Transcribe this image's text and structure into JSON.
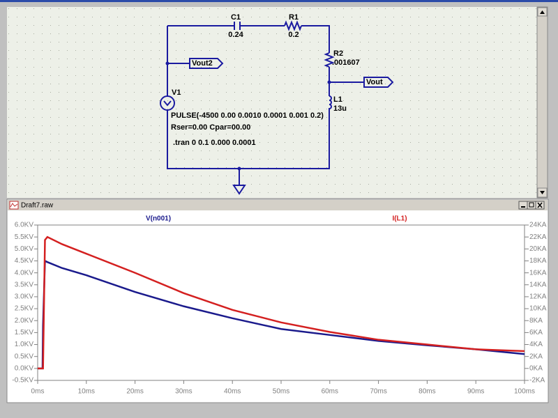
{
  "schematic": {
    "components": [
      {
        "name": "C1",
        "value": "0.24"
      },
      {
        "name": "R1",
        "value": "0.2"
      },
      {
        "name": "R2",
        "value": ".001607"
      },
      {
        "name": "L1",
        "value": "13u"
      },
      {
        "name": "V1"
      }
    ],
    "flags": [
      "Vout2",
      "Vout"
    ],
    "directives": [
      "PULSE(-4500 0.00 0.0010 0.0001 0.001 0.2)",
      "Rser=0.00 Cpar=00.00",
      ".tran 0 0.1 0.000 0.0001"
    ]
  },
  "plot_window": {
    "title": "Draft7.raw"
  },
  "chart_data": {
    "type": "line",
    "x": [
      0,
      1,
      1.1,
      1.5,
      2,
      5,
      10,
      20,
      30,
      40,
      50,
      60,
      70,
      80,
      90,
      100
    ],
    "series": [
      {
        "name": "V(n001)",
        "color": "#1a1a8c",
        "values": [
          0,
          0,
          1.8,
          4.5,
          4.45,
          4.2,
          3.9,
          3.2,
          2.6,
          2.1,
          1.65,
          1.4,
          1.15,
          0.97,
          0.8,
          0.6
        ]
      },
      {
        "name": "I(L1)",
        "color": "#d42020",
        "axis": "y2",
        "values": [
          0,
          0,
          0,
          21.5,
          22,
          20.8,
          19.2,
          16,
          12.6,
          9.8,
          7.7,
          6.1,
          4.8,
          4.0,
          3.2,
          2.9
        ]
      }
    ],
    "xlim": [
      0,
      100
    ],
    "xticks": [
      {
        "value": 0,
        "label": "0ms"
      },
      {
        "value": 10,
        "label": "10ms"
      },
      {
        "value": 20,
        "label": "20ms"
      },
      {
        "value": 30,
        "label": "30ms"
      },
      {
        "value": 40,
        "label": "40ms"
      },
      {
        "value": 50,
        "label": "50ms"
      },
      {
        "value": 60,
        "label": "60ms"
      },
      {
        "value": 70,
        "label": "70ms"
      },
      {
        "value": 80,
        "label": "80ms"
      },
      {
        "value": 90,
        "label": "90ms"
      },
      {
        "value": 100,
        "label": "100ms"
      }
    ],
    "ylim": [
      -0.5,
      6
    ],
    "yticks": [
      {
        "value": -0.5,
        "label": "-0.5KV"
      },
      {
        "value": 0,
        "label": "0.0KV"
      },
      {
        "value": 0.5,
        "label": "0.5KV"
      },
      {
        "value": 1,
        "label": "1.0KV"
      },
      {
        "value": 1.5,
        "label": "1.5KV"
      },
      {
        "value": 2,
        "label": "2.0KV"
      },
      {
        "value": 2.5,
        "label": "2.5KV"
      },
      {
        "value": 3,
        "label": "3.0KV"
      },
      {
        "value": 3.5,
        "label": "3.5KV"
      },
      {
        "value": 4,
        "label": "4.0KV"
      },
      {
        "value": 4.5,
        "label": "4.5KV"
      },
      {
        "value": 5,
        "label": "5.0KV"
      },
      {
        "value": 5.5,
        "label": "5.5KV"
      },
      {
        "value": 6,
        "label": "6.0KV"
      }
    ],
    "y2lim": [
      -2,
      24
    ],
    "y2ticks": [
      {
        "value": -2,
        "label": "-2KA"
      },
      {
        "value": 0,
        "label": "0KA"
      },
      {
        "value": 2,
        "label": "2KA"
      },
      {
        "value": 4,
        "label": "4KA"
      },
      {
        "value": 6,
        "label": "6KA"
      },
      {
        "value": 8,
        "label": "8KA"
      },
      {
        "value": 10,
        "label": "10KA"
      },
      {
        "value": 12,
        "label": "12KA"
      },
      {
        "value": 14,
        "label": "14KA"
      },
      {
        "value": 16,
        "label": "16KA"
      },
      {
        "value": 18,
        "label": "18KA"
      },
      {
        "value": 20,
        "label": "20KA"
      },
      {
        "value": 22,
        "label": "22KA"
      },
      {
        "value": 24,
        "label": "24KA"
      }
    ]
  }
}
